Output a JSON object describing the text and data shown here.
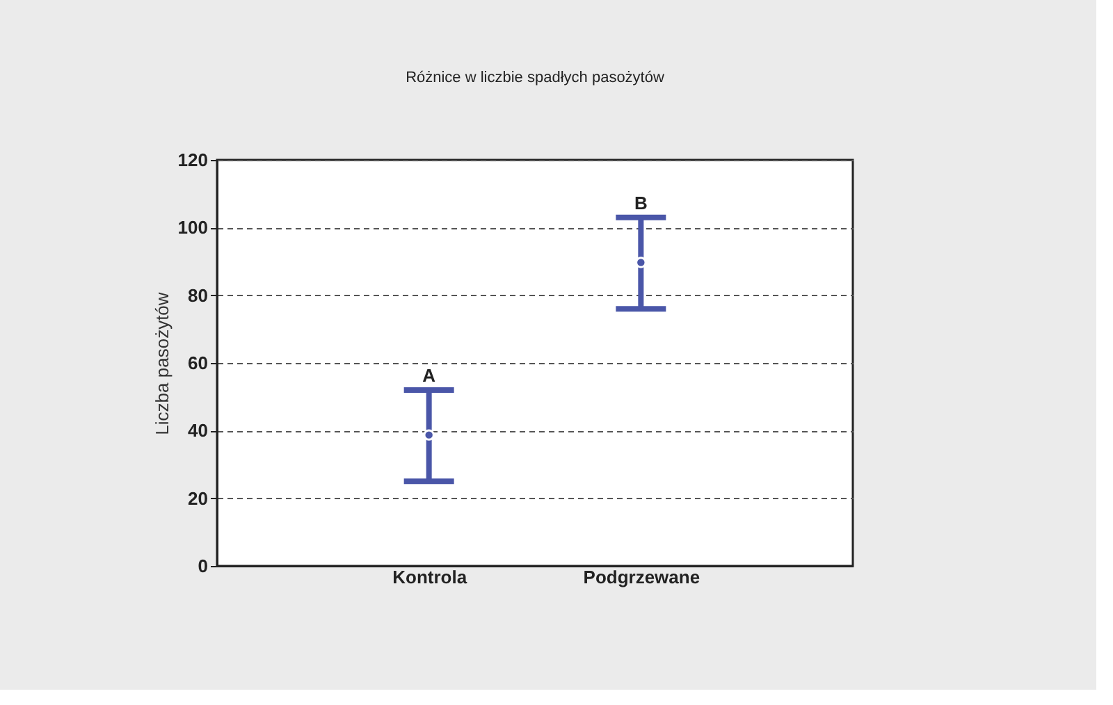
{
  "chart_data": {
    "type": "scatter",
    "title": "Różnice w liczbie spadłych pasożytów",
    "ylabel": "Liczba pasożytów",
    "categories": [
      "Kontrola",
      "Podgrzewane"
    ],
    "series": [
      {
        "color": "#4a56a8",
        "values": [
          38.7,
          89.7
        ],
        "errors": [
          [
            25,
            52
          ],
          [
            76,
            103
          ]
        ]
      }
    ],
    "annotations": [
      {
        "text": "A",
        "x": "Kontrola",
        "y": 52
      },
      {
        "text": "B",
        "x": "Podgrzewane",
        "y": 103
      }
    ],
    "ylim": [
      0,
      120
    ],
    "yticks": [
      0,
      20,
      40,
      60,
      80,
      100,
      120
    ],
    "grid": "y",
    "marker": "circle"
  }
}
